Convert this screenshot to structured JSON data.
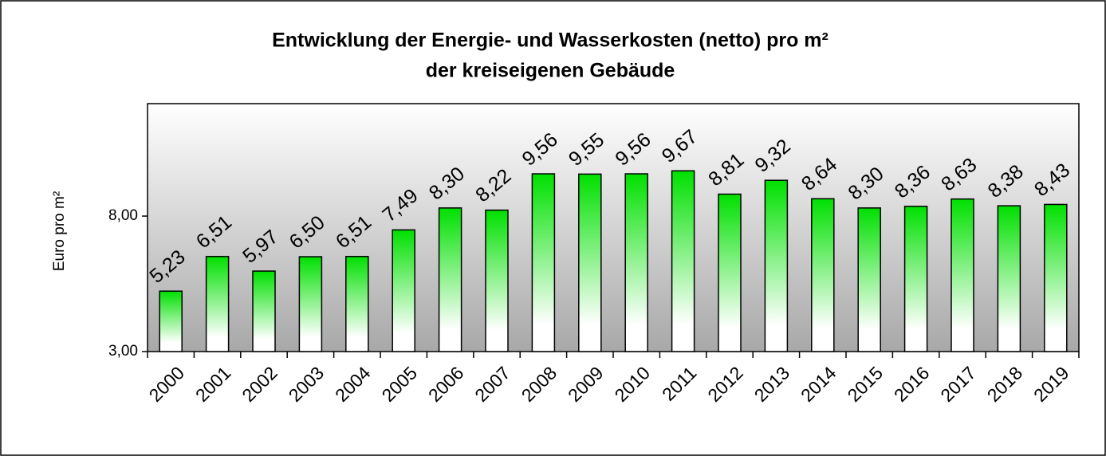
{
  "chart_data": {
    "type": "bar",
    "title": [
      "Entwicklung der Energie- und Wasserkosten (netto) pro m²",
      "der kreiseigenen Gebäude"
    ],
    "y_label": "Euro pro m²",
    "categories": [
      "2000",
      "2001",
      "2002",
      "2003",
      "2004",
      "2005",
      "2006",
      "2007",
      "2008",
      "2009",
      "2010",
      "2011",
      "2012",
      "2013",
      "2014",
      "2015",
      "2016",
      "2017",
      "2018",
      "2019"
    ],
    "values": [
      5.23,
      6.51,
      5.97,
      6.5,
      6.51,
      7.49,
      8.3,
      8.22,
      9.56,
      9.55,
      9.56,
      9.67,
      8.81,
      9.32,
      8.64,
      8.3,
      8.36,
      8.63,
      8.38,
      8.43
    ],
    "value_labels": [
      "5,23",
      "6,51",
      "5,97",
      "6,50",
      "6,51",
      "7,49",
      "8,30",
      "8,22",
      "9,56",
      "9,55",
      "9,56",
      "9,67",
      "8,81",
      "9,32",
      "8,64",
      "8,30",
      "8,36",
      "8,63",
      "8,38",
      "8,43"
    ],
    "color": "#00e000",
    "ylim": [
      3,
      12.15
    ],
    "yticks": [
      {
        "value": 3,
        "label": "3,00"
      },
      {
        "value": 8,
        "label": "8,00"
      }
    ]
  }
}
